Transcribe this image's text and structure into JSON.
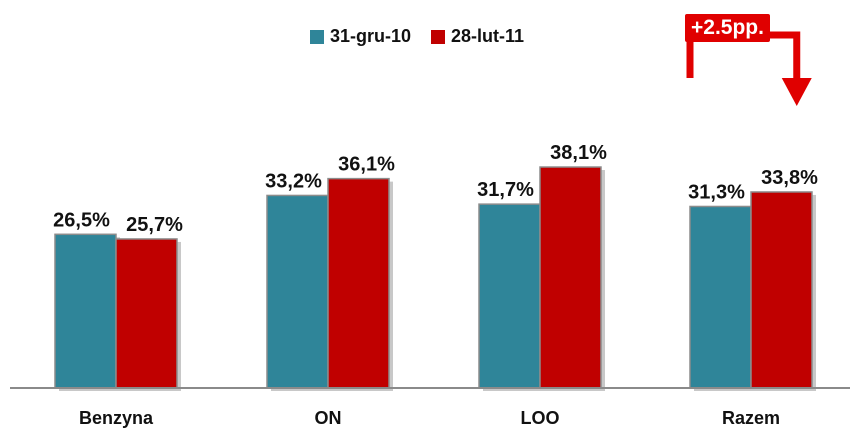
{
  "chart_data": {
    "type": "bar",
    "categories": [
      "Benzyna",
      "ON",
      "LOO",
      "Razem"
    ],
    "series": [
      {
        "name": "31-gru-10",
        "values": [
          26.5,
          33.2,
          31.7,
          31.3
        ],
        "labels": [
          "26,5%",
          "33,2%",
          "31,7%",
          "31,3%"
        ],
        "color": "#2f8599"
      },
      {
        "name": "28-lut-11",
        "values": [
          25.7,
          36.1,
          38.1,
          33.8
        ],
        "labels": [
          "25,7%",
          "36,1%",
          "38,1%",
          "33,8%"
        ],
        "color": "#c00000"
      }
    ],
    "ylim": [
      0,
      45
    ],
    "legend": "top-center",
    "grid": false,
    "annotation": {
      "text": "+2.5pp.",
      "category": "Razem",
      "color": "#e00000"
    }
  }
}
